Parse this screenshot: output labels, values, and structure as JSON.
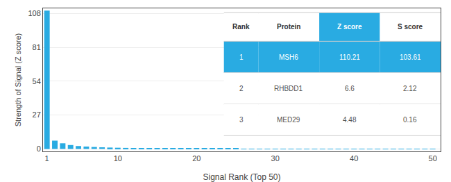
{
  "chart_data": {
    "type": "bar",
    "xlabel": "Signal Rank (Top 50)",
    "ylabel": "Strength of Signal (Z score)",
    "x": [
      1,
      2,
      3,
      4,
      5,
      6,
      7,
      8,
      9,
      10,
      11,
      12,
      13,
      14,
      15,
      16,
      17,
      18,
      19,
      20,
      21,
      22,
      23,
      24,
      25,
      26,
      27,
      28,
      29,
      30,
      31,
      32,
      33,
      34,
      35,
      36,
      37,
      38,
      39,
      40,
      41,
      42,
      43,
      44,
      45,
      46,
      47,
      48,
      49,
      50
    ],
    "values": [
      110.21,
      6.6,
      4.48,
      3.1,
      2.3,
      1.9,
      1.55,
      1.3,
      1.1,
      0.95,
      0.82,
      0.72,
      0.63,
      0.56,
      0.5,
      0.45,
      0.41,
      0.37,
      0.34,
      0.31,
      0.29,
      0.27,
      0.25,
      0.23,
      0.22,
      0.2,
      0.19,
      0.18,
      0.17,
      0.16,
      0.15,
      0.14,
      0.13,
      0.12,
      0.11,
      0.1,
      0.09,
      0.08,
      0.08,
      0.07,
      0.07,
      0.06,
      0.06,
      0.05,
      0.05,
      0.05,
      0.04,
      0.04,
      0.03,
      0.03
    ],
    "color": "#29ABE2",
    "xlim": [
      0.5,
      51
    ],
    "xticks": [
      1,
      10,
      20,
      30,
      40,
      50
    ],
    "ylim": [
      -2,
      112
    ],
    "yticks": [
      0,
      27,
      54,
      81,
      108
    ],
    "grid": true,
    "table": {
      "headers": [
        "Rank",
        "Protein",
        "Z score",
        "S score"
      ],
      "rows": [
        [
          "1",
          "MSH6",
          "110.21",
          "103.61"
        ],
        [
          "2",
          "RHBDD1",
          "6.6",
          "2.12"
        ],
        [
          "3",
          "MED29",
          "4.48",
          "0.16"
        ]
      ]
    }
  }
}
